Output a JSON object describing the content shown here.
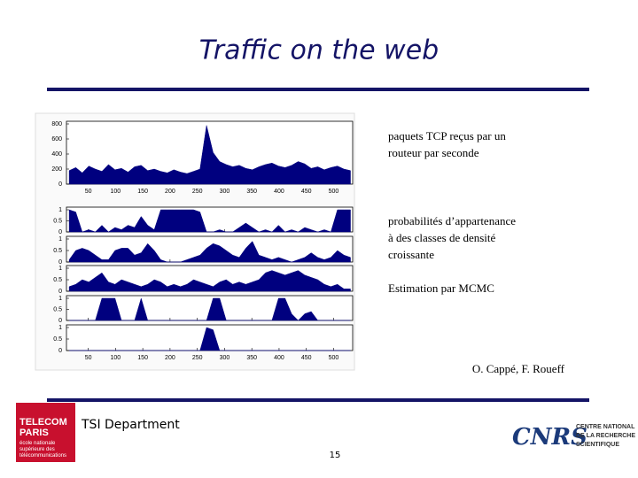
{
  "title": "Traffic on the web",
  "charts": [
    {
      "type": "area",
      "color": "#00007f",
      "xlim": [
        10,
        535
      ],
      "xticks": [
        50,
        100,
        150,
        200,
        250,
        300,
        350,
        400,
        450,
        500
      ],
      "xtick_labels": true,
      "ylim": [
        0,
        800
      ],
      "yticks": [
        0,
        200,
        400,
        600,
        800
      ],
      "x": [
        15,
        27,
        39,
        51,
        63,
        75,
        87,
        99,
        111,
        123,
        135,
        147,
        159,
        171,
        183,
        195,
        207,
        219,
        231,
        243,
        255,
        267,
        279,
        291,
        303,
        315,
        327,
        339,
        351,
        363,
        375,
        387,
        399,
        411,
        423,
        435,
        447,
        459,
        471,
        483,
        495,
        507,
        519,
        531
      ],
      "values": [
        180,
        220,
        150,
        240,
        200,
        170,
        260,
        190,
        210,
        160,
        230,
        250,
        180,
        200,
        170,
        150,
        190,
        160,
        140,
        170,
        200,
        780,
        420,
        300,
        260,
        230,
        250,
        210,
        190,
        230,
        260,
        280,
        240,
        220,
        250,
        300,
        270,
        210,
        230,
        190,
        220,
        240,
        200,
        180
      ]
    },
    {
      "type": "area",
      "color": "#00007f",
      "xlim": [
        10,
        535
      ],
      "xticks": [
        50,
        100,
        150,
        200,
        250,
        300,
        350,
        400,
        450,
        500
      ],
      "xtick_labels": false,
      "ylim": [
        0,
        1
      ],
      "yticks": [
        0,
        0.5,
        1
      ],
      "x": [
        15,
        27,
        39,
        51,
        63,
        75,
        87,
        99,
        111,
        123,
        135,
        147,
        159,
        171,
        183,
        195,
        207,
        219,
        231,
        243,
        255,
        267,
        279,
        291,
        303,
        315,
        327,
        339,
        351,
        363,
        375,
        387,
        399,
        411,
        423,
        435,
        447,
        459,
        471,
        483,
        495,
        507,
        519,
        531
      ],
      "values": [
        1,
        0.9,
        0,
        0.1,
        0,
        0.3,
        0,
        0.2,
        0.1,
        0.3,
        0.2,
        0.7,
        0.3,
        0.1,
        1,
        1,
        1,
        1,
        1,
        1,
        0.9,
        0,
        0,
        0.1,
        0,
        0,
        0.2,
        0.4,
        0.2,
        0,
        0.1,
        0,
        0.3,
        0,
        0.1,
        0,
        0.2,
        0.1,
        0,
        0.1,
        0,
        1,
        1,
        1
      ]
    },
    {
      "type": "area",
      "color": "#00007f",
      "xlim": [
        10,
        535
      ],
      "xticks": [
        50,
        100,
        150,
        200,
        250,
        300,
        350,
        400,
        450,
        500
      ],
      "xtick_labels": false,
      "ylim": [
        0,
        1
      ],
      "yticks": [
        0,
        0.5,
        1
      ],
      "x": [
        15,
        27,
        39,
        51,
        63,
        75,
        87,
        99,
        111,
        123,
        135,
        147,
        159,
        171,
        183,
        195,
        207,
        219,
        231,
        243,
        255,
        267,
        279,
        291,
        303,
        315,
        327,
        339,
        351,
        363,
        375,
        387,
        399,
        411,
        423,
        435,
        447,
        459,
        471,
        483,
        495,
        507,
        519,
        531
      ],
      "values": [
        0.1,
        0.5,
        0.6,
        0.5,
        0.3,
        0.1,
        0.1,
        0.5,
        0.6,
        0.6,
        0.3,
        0.4,
        0.8,
        0.5,
        0.1,
        0,
        0,
        0,
        0.1,
        0.2,
        0.3,
        0.6,
        0.8,
        0.7,
        0.5,
        0.3,
        0.2,
        0.6,
        0.9,
        0.3,
        0.2,
        0.1,
        0.2,
        0.1,
        0,
        0.1,
        0.2,
        0.4,
        0.2,
        0.1,
        0.2,
        0.5,
        0.3,
        0.2
      ]
    },
    {
      "type": "area",
      "color": "#00007f",
      "xlim": [
        10,
        535
      ],
      "xticks": [
        50,
        100,
        150,
        200,
        250,
        300,
        350,
        400,
        450,
        500
      ],
      "xtick_labels": false,
      "ylim": [
        0,
        1
      ],
      "yticks": [
        0,
        0.5,
        1
      ],
      "x": [
        15,
        27,
        39,
        51,
        63,
        75,
        87,
        99,
        111,
        123,
        135,
        147,
        159,
        171,
        183,
        195,
        207,
        219,
        231,
        243,
        255,
        267,
        279,
        291,
        303,
        315,
        327,
        339,
        351,
        363,
        375,
        387,
        399,
        411,
        423,
        435,
        447,
        459,
        471,
        483,
        495,
        507,
        519,
        531
      ],
      "values": [
        0.2,
        0.3,
        0.5,
        0.4,
        0.6,
        0.8,
        0.4,
        0.3,
        0.5,
        0.4,
        0.3,
        0.2,
        0.3,
        0.5,
        0.4,
        0.2,
        0.3,
        0.2,
        0.3,
        0.5,
        0.4,
        0.3,
        0.2,
        0.4,
        0.5,
        0.3,
        0.4,
        0.3,
        0.4,
        0.5,
        0.8,
        0.9,
        0.8,
        0.7,
        0.8,
        0.9,
        0.7,
        0.6,
        0.5,
        0.3,
        0.2,
        0.3,
        0.1,
        0.1
      ]
    },
    {
      "type": "area",
      "color": "#00007f",
      "xlim": [
        10,
        535
      ],
      "xticks": [
        50,
        100,
        150,
        200,
        250,
        300,
        350,
        400,
        450,
        500
      ],
      "xtick_labels": false,
      "ylim": [
        0,
        1
      ],
      "yticks": [
        0,
        0.5,
        1
      ],
      "x": [
        15,
        27,
        39,
        51,
        63,
        75,
        87,
        99,
        111,
        123,
        135,
        147,
        159,
        171,
        183,
        195,
        207,
        219,
        231,
        243,
        255,
        267,
        279,
        291,
        303,
        315,
        327,
        339,
        351,
        363,
        375,
        387,
        399,
        411,
        423,
        435,
        447,
        459,
        471,
        483,
        495,
        507,
        519,
        531
      ],
      "values": [
        0,
        0,
        0,
        0,
        0,
        1,
        1,
        1,
        0,
        0,
        0,
        1,
        0,
        0,
        0,
        0,
        0,
        0,
        0,
        0,
        0,
        0,
        1,
        1,
        0,
        0,
        0,
        0,
        0,
        0,
        0,
        0,
        1,
        1,
        0.3,
        0,
        0.3,
        0.4,
        0,
        0,
        0,
        0,
        0,
        0
      ]
    },
    {
      "type": "area",
      "color": "#00007f",
      "xlim": [
        10,
        535
      ],
      "xticks": [
        50,
        100,
        150,
        200,
        250,
        300,
        350,
        400,
        450,
        500
      ],
      "xtick_labels": true,
      "ylim": [
        0,
        1
      ],
      "yticks": [
        0,
        0.5,
        1
      ],
      "x": [
        15,
        27,
        39,
        51,
        63,
        75,
        87,
        99,
        111,
        123,
        135,
        147,
        159,
        171,
        183,
        195,
        207,
        219,
        231,
        243,
        255,
        267,
        279,
        291,
        303,
        315,
        327,
        339,
        351,
        363,
        375,
        387,
        399,
        411,
        423,
        435,
        447,
        459,
        471,
        483,
        495,
        507,
        519,
        531
      ],
      "values": [
        0,
        0,
        0,
        0,
        0,
        0,
        0,
        0,
        0,
        0,
        0,
        0,
        0,
        0,
        0,
        0,
        0,
        0,
        0,
        0,
        0,
        1,
        0.9,
        0,
        0,
        0,
        0,
        0,
        0,
        0,
        0,
        0,
        0,
        0,
        0,
        0,
        0,
        0,
        0,
        0,
        0,
        0,
        0,
        0
      ]
    }
  ],
  "annotations": [
    [
      "paquets TCP reçus par un",
      "routeur par seconde"
    ],
    [
      "probabilités d’appartenance",
      "à des classes de densité",
      "croissante"
    ],
    [
      "Estimation par MCMC"
    ]
  ],
  "authors": "O. Cappé, F. Roueff",
  "footer": {
    "department": "TSI Department",
    "page": "15",
    "left_logo": [
      "TELECOM",
      "PARIS",
      "école nationale",
      "supérieure des",
      "télécommunications"
    ],
    "right_logo": [
      "CNRS",
      "CENTRE NATIONAL",
      "DE LA RECHERCHE",
      "SCIENTIFIQUE"
    ]
  }
}
